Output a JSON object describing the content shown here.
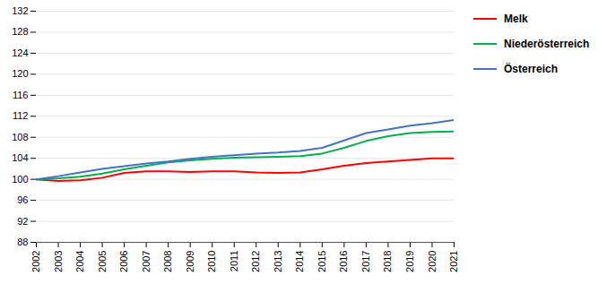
{
  "chart_data": {
    "type": "line",
    "x": [
      2002,
      2003,
      2004,
      2005,
      2006,
      2007,
      2008,
      2009,
      2010,
      2011,
      2012,
      2013,
      2014,
      2015,
      2016,
      2017,
      2018,
      2019,
      2020,
      2021
    ],
    "series": [
      {
        "name": "Melk",
        "color": "#ff0000",
        "values": [
          100.0,
          99.7,
          99.8,
          100.3,
          101.2,
          101.5,
          101.5,
          101.4,
          101.5,
          101.5,
          101.3,
          101.2,
          101.3,
          101.9,
          102.6,
          103.1,
          103.4,
          103.7,
          104.0,
          104.0
        ]
      },
      {
        "name": "Niederösterreich",
        "color": "#00b050",
        "values": [
          100.0,
          100.2,
          100.5,
          101.1,
          101.9,
          102.6,
          103.2,
          103.6,
          103.9,
          104.1,
          104.2,
          104.3,
          104.4,
          104.9,
          106.0,
          107.3,
          108.2,
          108.8,
          109.0,
          109.1
        ]
      },
      {
        "name": "Österreich",
        "color": "#4472c4",
        "values": [
          100.0,
          100.6,
          101.3,
          102.0,
          102.5,
          103.0,
          103.4,
          103.9,
          104.3,
          104.6,
          104.9,
          105.1,
          105.4,
          106.0,
          107.4,
          108.8,
          109.5,
          110.2,
          110.7,
          111.3
        ]
      }
    ],
    "xlim": [
      2002,
      2021
    ],
    "xticks": [
      2002,
      2003,
      2004,
      2005,
      2006,
      2007,
      2008,
      2009,
      2010,
      2011,
      2012,
      2013,
      2014,
      2015,
      2016,
      2017,
      2018,
      2019,
      2020,
      2021
    ],
    "ylim": [
      88,
      132
    ],
    "yticks": [
      88,
      92,
      96,
      100,
      104,
      108,
      112,
      116,
      120,
      124,
      128,
      132
    ],
    "grid": true,
    "legend": "right"
  }
}
